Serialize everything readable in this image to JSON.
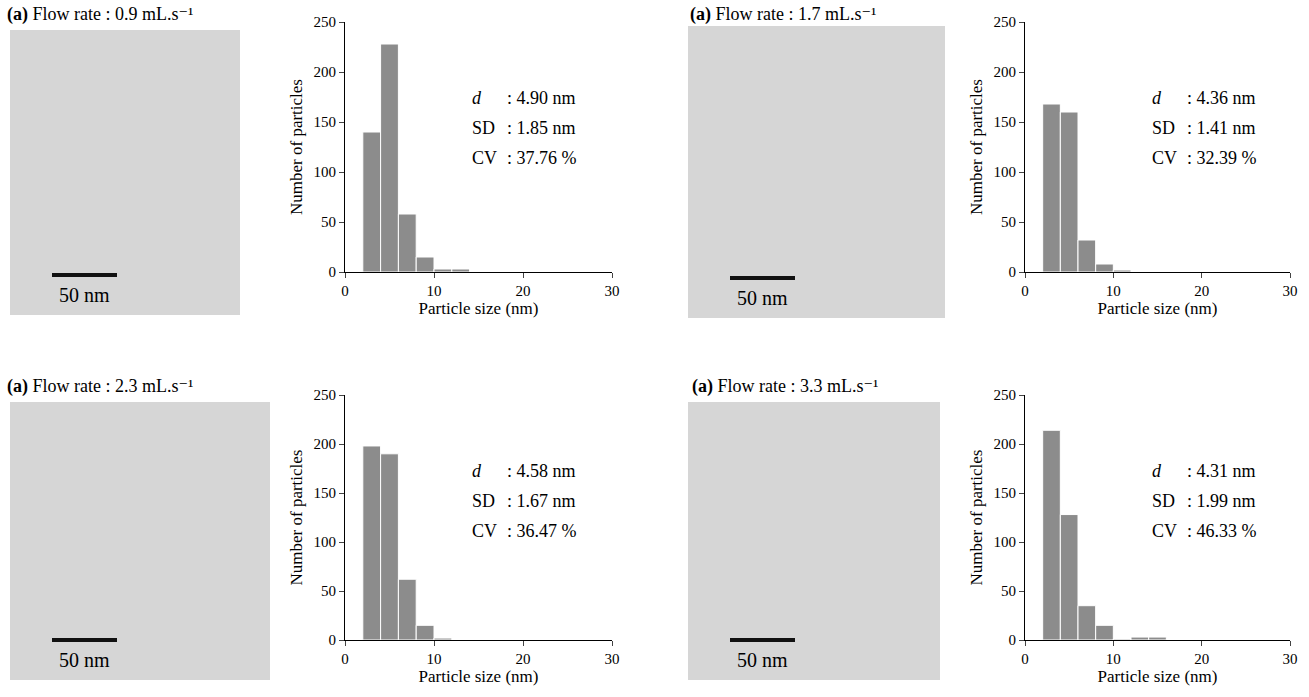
{
  "chart_data": [
    {
      "type": "histogram",
      "title": "(a) Flow rate : 0.9 mL.s⁻¹",
      "x_label": "Particle size (nm)",
      "y_label": "Number of particles",
      "bins": [
        2,
        4,
        6,
        8,
        10,
        12,
        14
      ],
      "values": [
        140,
        228,
        58,
        15,
        3,
        3
      ],
      "color": "#8c8c8c",
      "xlim": [
        0,
        30
      ],
      "xticks": [
        0,
        10,
        20,
        30
      ],
      "ylim": [
        0,
        250
      ],
      "yticks": [
        0,
        50,
        100,
        150,
        200,
        250
      ],
      "grid": false,
      "annotations": [
        {
          "label": "d",
          "text": ": 4.90 nm"
        },
        {
          "label": "SD",
          "text": ": 1.85 nm"
        },
        {
          "label": "CV",
          "text": ": 37.76 %"
        }
      ],
      "scale_bar_label": "50 nm"
    },
    {
      "type": "histogram",
      "title": "(a) Flow rate : 1.7 mL.s⁻¹",
      "x_label": "Particle size (nm)",
      "y_label": "Number of particles",
      "bins": [
        2,
        4,
        6,
        8,
        10,
        12
      ],
      "values": [
        168,
        160,
        32,
        8,
        2
      ],
      "color": "#8c8c8c",
      "xlim": [
        0,
        30
      ],
      "xticks": [
        0,
        10,
        20,
        30
      ],
      "ylim": [
        0,
        250
      ],
      "yticks": [
        0,
        50,
        100,
        150,
        200,
        250
      ],
      "grid": false,
      "annotations": [
        {
          "label": "d",
          "text": ": 4.36 nm"
        },
        {
          "label": "SD",
          "text": ": 1.41 nm"
        },
        {
          "label": "CV",
          "text": ": 32.39 %"
        }
      ],
      "scale_bar_label": "50 nm"
    },
    {
      "type": "histogram",
      "title": "(a) Flow rate : 2.3 mL.s⁻¹",
      "x_label": "Particle size (nm)",
      "y_label": "Number of particles",
      "bins": [
        2,
        4,
        6,
        8,
        10,
        12
      ],
      "values": [
        198,
        190,
        62,
        15,
        2
      ],
      "color": "#8c8c8c",
      "xlim": [
        0,
        30
      ],
      "xticks": [
        0,
        10,
        20,
        30
      ],
      "ylim": [
        0,
        250
      ],
      "yticks": [
        0,
        50,
        100,
        150,
        200,
        250
      ],
      "grid": false,
      "annotations": [
        {
          "label": "d",
          "text": ": 4.58 nm"
        },
        {
          "label": "SD",
          "text": ": 1.67 nm"
        },
        {
          "label": "CV",
          "text": ": 36.47 %"
        }
      ],
      "scale_bar_label": "50 nm"
    },
    {
      "type": "histogram",
      "title": "(a) Flow rate : 3.3 mL.s⁻¹",
      "x_label": "Particle size (nm)",
      "y_label": "Number of particles",
      "bins": [
        2,
        4,
        6,
        8,
        10,
        12,
        14,
        16
      ],
      "values": [
        214,
        128,
        35,
        15,
        1,
        3,
        3
      ],
      "color": "#8c8c8c",
      "xlim": [
        0,
        30
      ],
      "xticks": [
        0,
        10,
        20,
        30
      ],
      "ylim": [
        0,
        250
      ],
      "yticks": [
        0,
        50,
        100,
        150,
        200,
        250
      ],
      "grid": false,
      "annotations": [
        {
          "label": "d",
          "text": ": 4.31 nm"
        },
        {
          "label": "SD",
          "text": ": 1.99 nm"
        },
        {
          "label": "CV",
          "text": ": 46.33 %"
        }
      ],
      "scale_bar_label": "50 nm"
    }
  ]
}
